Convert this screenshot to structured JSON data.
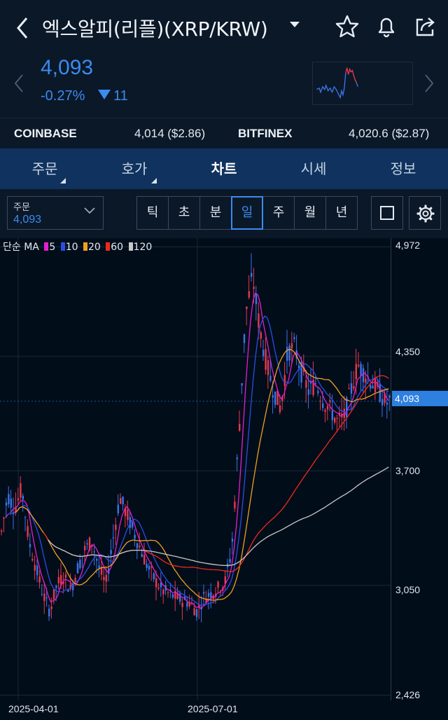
{
  "header": {
    "title": "엑스알피(리플)(XRP/KRW)"
  },
  "quote": {
    "price": "4,093",
    "change_pct": "-0.27%",
    "change_abs": "11"
  },
  "exchanges": [
    {
      "name": "COINBASE",
      "value": "4,014 ($2.86)"
    },
    {
      "name": "BITFINEX",
      "value": "4,020.6 ($2.87)"
    }
  ],
  "tabs": [
    {
      "label": "주문"
    },
    {
      "label": "호가"
    },
    {
      "label": "차트"
    },
    {
      "label": "시세"
    },
    {
      "label": "정보"
    }
  ],
  "toolbar": {
    "order_label": "주문",
    "order_value": "4,093",
    "periods": [
      "틱",
      "초",
      "분",
      "일",
      "주",
      "월",
      "년"
    ],
    "selected_period": "일"
  },
  "colors": {
    "up": "#e8384f",
    "down": "#3b74e8",
    "ma5": "#e11fd0",
    "ma10": "#2b4de6",
    "ma20": "#f0a020",
    "ma60": "#ee2a1a",
    "ma120": "#c8c8c8",
    "accent": "#3b8bf0"
  },
  "chart_data": {
    "type": "candlestick",
    "legend_title": "단순 MA",
    "legend": [
      {
        "name": "5",
        "color": "#e11fd0"
      },
      {
        "name": "10",
        "color": "#2b4de6"
      },
      {
        "name": "20",
        "color": "#f0a020"
      },
      {
        "name": "60",
        "color": "#ee2a1a"
      },
      {
        "name": "120",
        "color": "#c8c8c8"
      }
    ],
    "y_ticks": [
      "4,972",
      "4,350",
      "3,700",
      "3,050",
      "2,426"
    ],
    "y_tick_values": [
      4972,
      4350,
      3700,
      3050,
      2426
    ],
    "x_ticks": [
      "2025-04-01",
      "2025-07-01"
    ],
    "current_price_label": "4,093",
    "current_price": 4093,
    "ylim": [
      2426,
      4972
    ]
  }
}
